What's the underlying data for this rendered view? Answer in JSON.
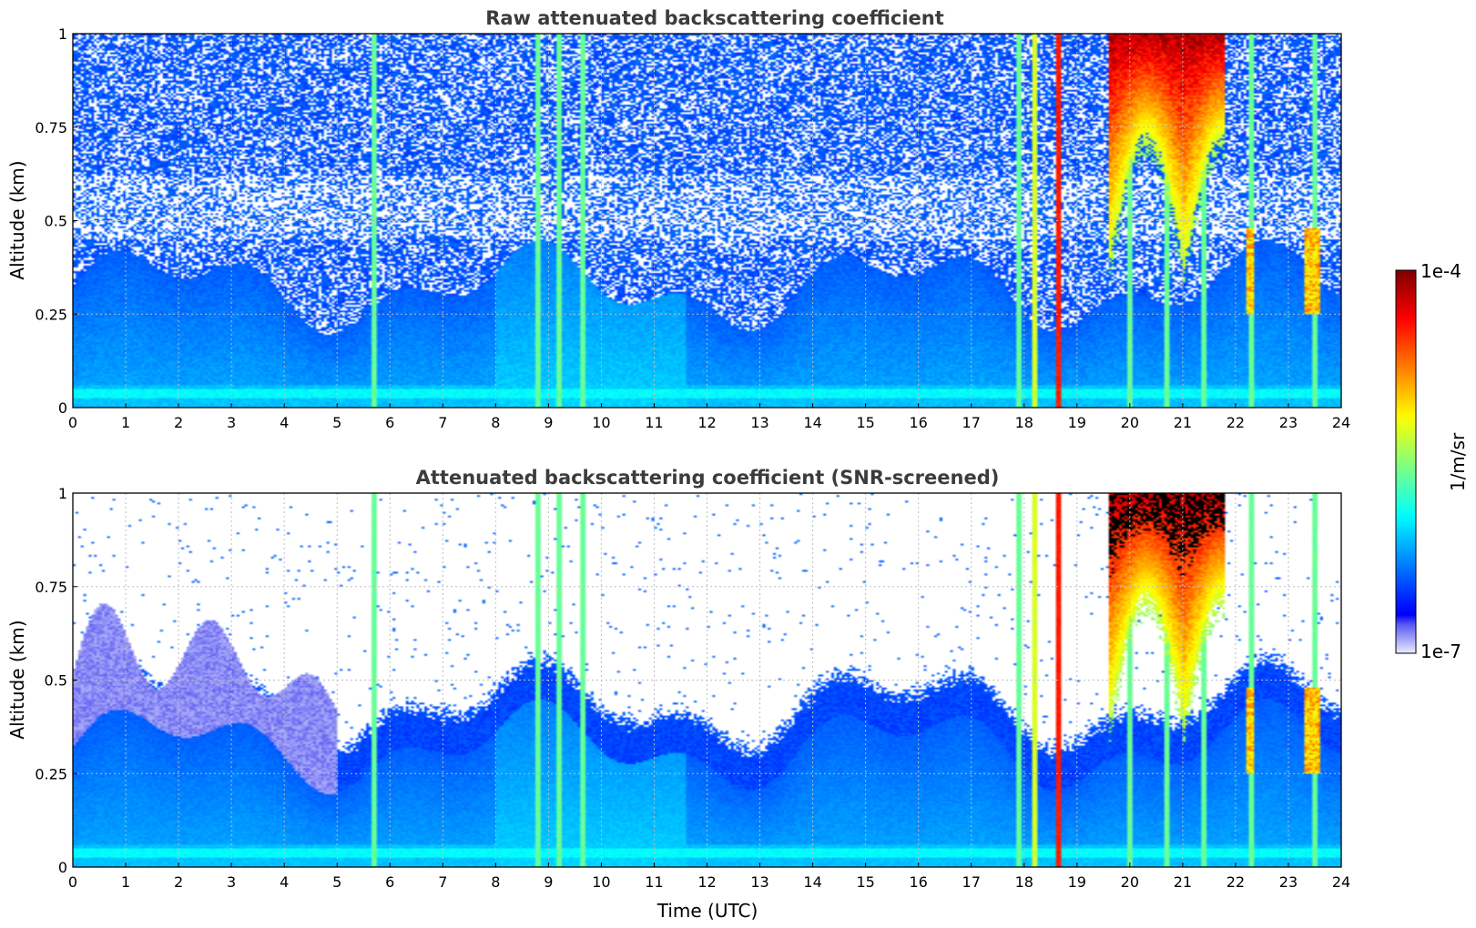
{
  "chart_data": [
    {
      "type": "heatmap",
      "title": "Raw attenuated backscattering coefficient",
      "xlabel": "",
      "ylabel": "Altitude (km)",
      "xlim": [
        0,
        24
      ],
      "ylim": [
        0,
        1
      ],
      "x_ticks": [
        "0",
        "1",
        "2",
        "3",
        "4",
        "5",
        "6",
        "7",
        "8",
        "9",
        "10",
        "11",
        "12",
        "13",
        "14",
        "15",
        "16",
        "17",
        "18",
        "19",
        "20",
        "21",
        "22",
        "23",
        "24"
      ],
      "y_ticks": [
        "0",
        "0.25",
        "0.5",
        "0.75",
        "1"
      ],
      "grid": true,
      "screening": "raw",
      "vertical_streaks_hours": [
        5.7,
        8.8,
        9.2,
        9.65,
        17.9,
        18.2,
        18.65,
        20.0,
        20.7,
        21.4,
        22.3,
        23.5
      ],
      "high_cloud": {
        "start_hour": 19.6,
        "end_hour": 21.8,
        "base_km_min": 0.3,
        "top_km": 1.0
      }
    },
    {
      "type": "heatmap",
      "title": "Attenuated backscattering coefficient (SNR-screened)",
      "xlabel": "Time (UTC)",
      "ylabel": "Altitude (km)",
      "xlim": [
        0,
        24
      ],
      "ylim": [
        0,
        1
      ],
      "x_ticks": [
        "0",
        "1",
        "2",
        "3",
        "4",
        "5",
        "6",
        "7",
        "8",
        "9",
        "10",
        "11",
        "12",
        "13",
        "14",
        "15",
        "16",
        "17",
        "18",
        "19",
        "20",
        "21",
        "22",
        "23",
        "24"
      ],
      "y_ticks": [
        "0",
        "0.25",
        "0.5",
        "0.75",
        "1"
      ],
      "grid": true,
      "screening": "snr",
      "vertical_streaks_hours": [
        5.7,
        8.8,
        9.2,
        9.65,
        17.9,
        18.2,
        18.65,
        20.0,
        20.7,
        21.4,
        22.3,
        23.5
      ],
      "high_cloud": {
        "start_hour": 19.6,
        "end_hour": 21.8,
        "base_km_min": 0.3,
        "top_km": 1.0
      }
    }
  ],
  "colorbar": {
    "label": "1/m/sr",
    "max_label": "1e-4",
    "min_label": "1e-7",
    "log_min": -7,
    "log_max": -4,
    "colormap": "jet-with-white-low"
  }
}
